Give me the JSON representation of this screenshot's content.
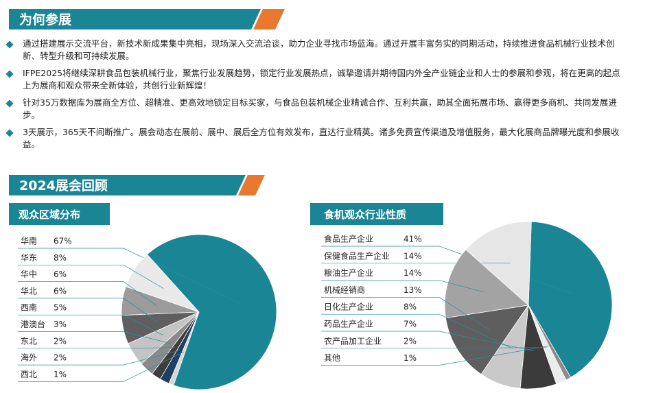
{
  "sections": [
    {
      "title": "为何参展"
    },
    {
      "title": "2024展会回顾"
    }
  ],
  "bullets": [
    "通过搭建展示交流平台，新技术新成果集中亮相，现场深入交流洽谈，助力企业寻找市场蓝海。通过开展丰富务实的同期活动，持续推进食品机械行业技术创新、转型升级和可持续发展。",
    "IFPE2025将继续深耕食品包装机械行业，聚焦行业发展趋势，锁定行业发展热点，诚挚邀请并期待国内外全产业链企业和人士的参展和参观，将在更高的起点上为展商和观众带来全新体验，共创行业新辉煌！",
    "针对35万数据库为展商全方位、超精准、更高效地锁定目标买家，与食品包装机械企业精诚合作、互利共赢，助其全面拓展市场、赢得更多商机、共同发展进步。",
    "3天展示，365天不间断推广。展会动态在展前、展中、展后全方位有效发布，直达行业精英。诸多免费宣传渠道及增值服务，最大化展商品牌曝光度和参展收益。"
  ],
  "chart_data": [
    {
      "type": "pie",
      "title": "观众区域分布",
      "categories": [
        "华南",
        "华东",
        "华中",
        "华北",
        "西南",
        "港澳台",
        "东北",
        "海外",
        "西北"
      ],
      "values": [
        67,
        8,
        6,
        6,
        5,
        3,
        2,
        2,
        1
      ],
      "value_labels": [
        "67%",
        "8%",
        "6%",
        "6%",
        "5%",
        "3%",
        "2%",
        "2%",
        "1%"
      ],
      "colors": [
        "#1a8594",
        "#e9e9e9",
        "#9b9b9b",
        "#5f5f5f",
        "#c4c4c4",
        "#8a8a8a",
        "#3d3d3d",
        "#1f3f63",
        "#d6d6d6"
      ]
    },
    {
      "type": "pie",
      "title": "食机观众行业性质",
      "categories": [
        "食品生产企业",
        "保健食品生产企业",
        "粮油生产企业",
        "机械经销商",
        "日化生产企业",
        "药品生产企业",
        "农产品加工企业",
        "其他"
      ],
      "values": [
        41,
        14,
        14,
        13,
        8,
        7,
        2,
        1
      ],
      "value_labels": [
        "41%",
        "14%",
        "14%",
        "13%",
        "8%",
        "7%",
        "2%",
        "1%"
      ],
      "colors": [
        "#1a8594",
        "#e6e6e6",
        "#a3a3a3",
        "#5e5e5e",
        "#c9c9c9",
        "#3b3b3b",
        "#ececec",
        "#8c8c8c"
      ]
    }
  ]
}
